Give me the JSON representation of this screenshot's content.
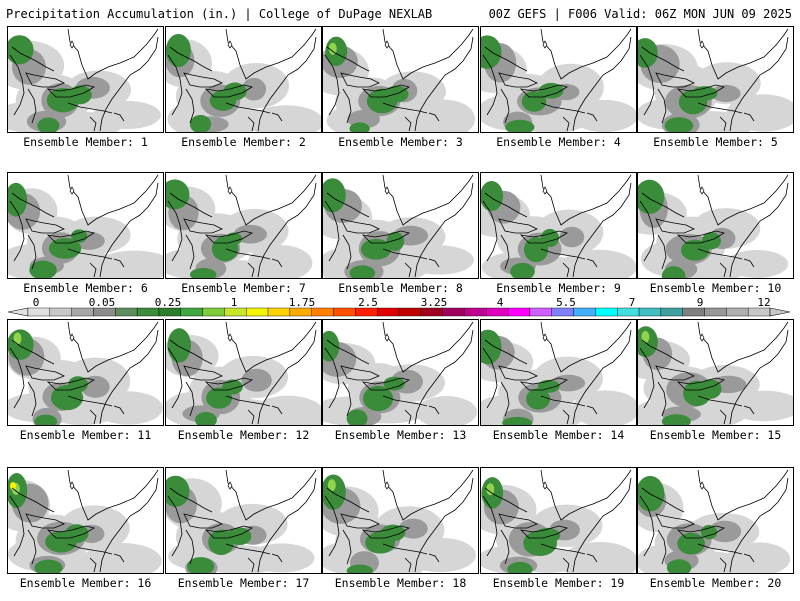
{
  "header": {
    "title": "Precipitation Accumulation (in.) | College of DuPage NEXLAB",
    "run_info": "00Z GEFS | F006 Valid: 06Z MON JUN 09 2025"
  },
  "members": [
    {
      "label": "Ensemble Member: 1"
    },
    {
      "label": "Ensemble Member: 2"
    },
    {
      "label": "Ensemble Member: 3"
    },
    {
      "label": "Ensemble Member: 4"
    },
    {
      "label": "Ensemble Member: 5"
    },
    {
      "label": "Ensemble Member: 6"
    },
    {
      "label": "Ensemble Member: 7"
    },
    {
      "label": "Ensemble Member: 8"
    },
    {
      "label": "Ensemble Member: 9"
    },
    {
      "label": "Ensemble Member: 10"
    },
    {
      "label": "Ensemble Member: 11"
    },
    {
      "label": "Ensemble Member: 12"
    },
    {
      "label": "Ensemble Member: 13"
    },
    {
      "label": "Ensemble Member: 14"
    },
    {
      "label": "Ensemble Member: 15"
    },
    {
      "label": "Ensemble Member: 16"
    },
    {
      "label": "Ensemble Member: 17"
    },
    {
      "label": "Ensemble Member: 18"
    },
    {
      "label": "Ensemble Member: 19"
    },
    {
      "label": "Ensemble Member: 20"
    }
  ],
  "colorbar": {
    "tick_labels": [
      "0",
      "0.05",
      "0.25",
      "1",
      "1.75",
      "2.5",
      "3.25",
      "4",
      "5.5",
      "7",
      "9",
      "12"
    ],
    "colors": [
      "#e0e0e0",
      "#c8c8c8",
      "#a8a8a8",
      "#8c8c8c",
      "#5e8e5e",
      "#3c8c3c",
      "#2e7d2e",
      "#3fa83f",
      "#7ccc3c",
      "#c8e628",
      "#f4f400",
      "#ffd200",
      "#ffaa00",
      "#ff8000",
      "#ff5000",
      "#ff2000",
      "#e00000",
      "#c00000",
      "#a00020",
      "#a00060",
      "#c00090",
      "#e000c0",
      "#ff00ff",
      "#d060ff",
      "#8080ff",
      "#40b0ff",
      "#00ffff",
      "#40e0e0",
      "#40c0c0",
      "#40a0a0",
      "#808080",
      "#989898",
      "#b0b0b0",
      "#c8c8c8"
    ]
  }
}
